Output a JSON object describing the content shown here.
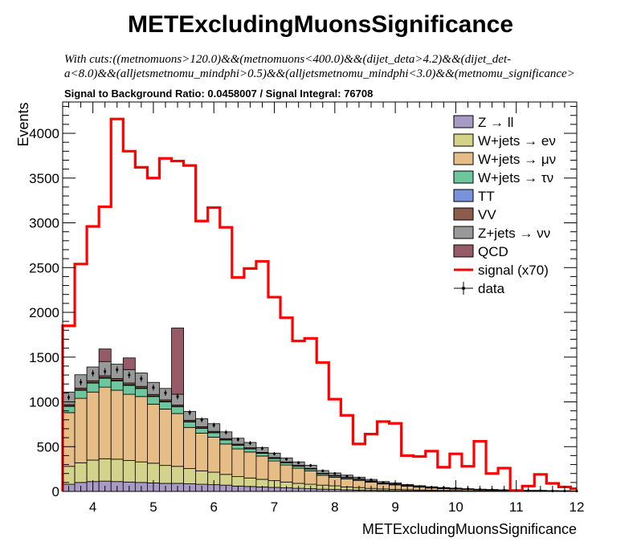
{
  "header": {
    "title": "METExcludingMuonsSignificance",
    "cuts_line1": "With cuts:((metnomuons>120.0)&&(metnomuons<400.0)&&(dijet_deta>4.2)&&(dijet_det-",
    "cuts_line2": "a<8.0)&&(alljetsmetnomu_mindphi>0.5)&&(alljetsmetnomu_mindphi<3.0)&&(metnomu_significance>",
    "ratio_text": "Signal to Background Ratio: 0.0458007 / Signal Integral: 76708"
  },
  "chart_data": {
    "type": "bar",
    "stacked": true,
    "xlabel": "METExcludingMuonsSignificance",
    "ylabel": "Events",
    "xlim": [
      3.5,
      12
    ],
    "ylim": [
      0,
      4350
    ],
    "bin_width": 0.2,
    "x_ticks": [
      "4",
      "5",
      "6",
      "7",
      "8",
      "9",
      "10",
      "11",
      "12"
    ],
    "y_ticks": [
      "0",
      "500",
      "1000",
      "1500",
      "2000",
      "2500",
      "3000",
      "3500",
      "4000"
    ],
    "legend_position": "top-right",
    "bin_edges_start": [
      3.5,
      3.7,
      3.9,
      4.1,
      4.3,
      4.5,
      4.7,
      4.9,
      5.1,
      5.3,
      5.5,
      5.7,
      5.9,
      6.1,
      6.3,
      6.5,
      6.7,
      6.9,
      7.1,
      7.3,
      7.5,
      7.7,
      7.9,
      8.1,
      8.3,
      8.5,
      8.7,
      8.9,
      9.1,
      9.3,
      9.5,
      9.7,
      9.9,
      10.1,
      10.3,
      10.5,
      10.7,
      10.9,
      11.1,
      11.3,
      11.5,
      11.7,
      11.9
    ],
    "background_series": [
      {
        "name": "Z → ll",
        "color": "#a89bc3",
        "values": [
          80,
          100,
          110,
          115,
          110,
          105,
          100,
          95,
          90,
          90,
          85,
          80,
          75,
          70,
          60,
          55,
          50,
          45,
          40,
          35,
          30,
          25,
          22,
          18,
          15,
          12,
          10,
          8,
          7,
          6,
          5,
          4,
          4,
          3,
          3,
          2,
          2,
          2,
          1,
          1,
          1,
          1,
          1
        ]
      },
      {
        "name": "W+jets → eν",
        "color": "#d3d38c",
        "values": [
          200,
          220,
          240,
          250,
          250,
          240,
          230,
          220,
          200,
          190,
          170,
          150,
          140,
          120,
          105,
          95,
          85,
          75,
          65,
          55,
          50,
          45,
          40,
          32,
          28,
          22,
          18,
          15,
          12,
          10,
          8,
          7,
          6,
          5,
          4,
          3,
          3,
          2,
          2,
          2,
          1,
          1,
          1
        ]
      },
      {
        "name": "W+jets → μν",
        "color": "#e6bd86",
        "values": [
          600,
          720,
          760,
          800,
          770,
          740,
          730,
          660,
          630,
          590,
          460,
          420,
          390,
          340,
          310,
          290,
          260,
          220,
          190,
          170,
          150,
          110,
          95,
          90,
          80,
          70,
          55,
          50,
          40,
          32,
          25,
          20,
          17,
          14,
          11,
          10,
          8,
          6,
          5,
          5,
          4,
          3,
          2
        ]
      },
      {
        "name": "W+jets → τν",
        "color": "#6cc79e",
        "values": [
          70,
          90,
          100,
          100,
          105,
          100,
          90,
          85,
          80,
          75,
          60,
          55,
          50,
          45,
          40,
          35,
          30,
          28,
          25,
          22,
          20,
          17,
          15,
          13,
          11,
          9,
          8,
          7,
          6,
          5,
          4,
          3,
          3,
          2,
          2,
          2,
          1,
          1,
          1,
          1,
          1,
          1,
          1
        ]
      },
      {
        "name": "TT",
        "color": "#7893d9",
        "values": [
          5,
          5,
          5,
          6,
          6,
          6,
          5,
          5,
          5,
          4,
          4,
          3,
          3,
          3,
          3,
          2,
          2,
          2,
          2,
          2,
          1,
          1,
          1,
          1,
          1,
          1,
          1,
          0,
          0,
          0,
          0,
          0,
          0,
          0,
          0,
          0,
          0,
          0,
          0,
          0,
          0,
          0,
          0
        ]
      },
      {
        "name": "VV",
        "color": "#8c5c4c",
        "values": [
          15,
          18,
          20,
          20,
          20,
          20,
          18,
          18,
          17,
          16,
          15,
          14,
          13,
          12,
          11,
          10,
          9,
          8,
          7,
          6,
          6,
          5,
          5,
          4,
          4,
          3,
          3,
          3,
          2,
          2,
          2,
          2,
          1,
          1,
          1,
          1,
          1,
          1,
          1,
          1,
          0,
          0,
          0
        ]
      },
      {
        "name": "Z+jets → νν",
        "color": "#999999",
        "values": [
          140,
          150,
          155,
          160,
          160,
          150,
          150,
          135,
          128,
          120,
          100,
          90,
          85,
          75,
          65,
          60,
          55,
          50,
          45,
          40,
          35,
          30,
          28,
          24,
          20,
          17,
          15,
          13,
          10,
          9,
          8,
          7,
          6,
          5,
          4,
          4,
          3,
          3,
          2,
          2,
          2,
          2,
          1
        ]
      },
      {
        "name": "QCD",
        "color": "#955c67",
        "values": [
          0,
          0,
          0,
          140,
          0,
          130,
          0,
          0,
          0,
          740,
          0,
          0,
          0,
          0,
          0,
          0,
          0,
          0,
          0,
          0,
          0,
          0,
          0,
          0,
          0,
          0,
          0,
          0,
          0,
          0,
          0,
          0,
          0,
          0,
          0,
          0,
          0,
          0,
          0,
          0,
          0,
          0,
          0
        ]
      }
    ],
    "signal": {
      "name": "signal (x70)",
      "color": "#ff0000",
      "values": [
        1850,
        2540,
        2960,
        3180,
        4160,
        3800,
        3620,
        3500,
        3720,
        3690,
        3640,
        3020,
        3170,
        2950,
        2390,
        2490,
        2570,
        2170,
        1940,
        1680,
        1710,
        1440,
        1030,
        850,
        530,
        640,
        780,
        760,
        400,
        390,
        450,
        270,
        420,
        280,
        560,
        200,
        260,
        10,
        60,
        190,
        90,
        50,
        30
      ]
    },
    "data": {
      "name": "data",
      "values": [
        1050,
        1220,
        1320,
        1340,
        1360,
        1300,
        1260,
        1160,
        1100,
        1060,
        880,
        800,
        740,
        660,
        580,
        540,
        480,
        420,
        360,
        320,
        290,
        230,
        200,
        170,
        150,
        130,
        100,
        85,
        70,
        55,
        45,
        40,
        35,
        28,
        22,
        18,
        14,
        11,
        9,
        8,
        6,
        5,
        4
      ]
    }
  }
}
